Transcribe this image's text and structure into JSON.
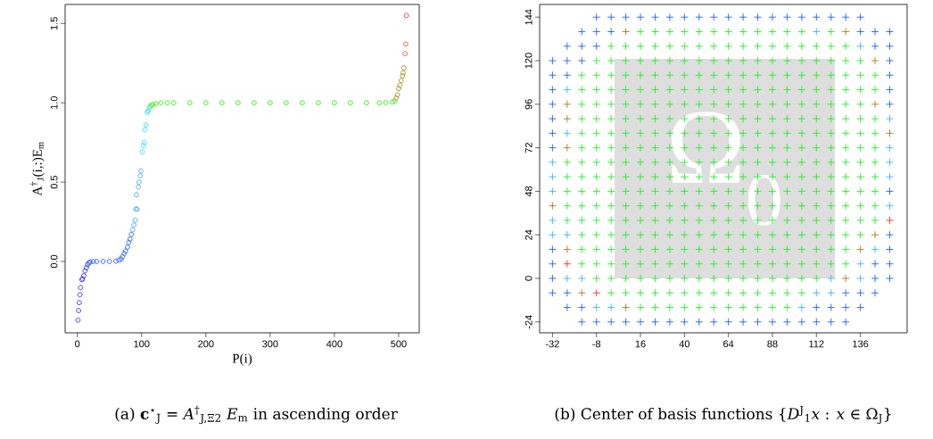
{
  "chart_data": [
    {
      "type": "scatter",
      "title": "(a) **c**$^{⋆}$$_{J}$ = *A*$^{†}$$_{J,Ξ2}$ *E*$_{m}$ in ascending order",
      "xlabel": "P(i)",
      "ylabel": "A$^{†}$$_{J}$(i,:)E$_{m}$",
      "marker": "circle",
      "xlim": [
        -19,
        532
      ],
      "ylim": [
        -0.45,
        1.62
      ],
      "xticks": [
        0,
        100,
        200,
        300,
        400,
        500
      ],
      "yticks": [
        {
          "value": 0,
          "label": "0.0"
        },
        {
          "value": 0.5,
          "label": "0.5"
        },
        {
          "value": 1,
          "label": "1.0"
        },
        {
          "value": 1.5,
          "label": "1.5"
        }
      ],
      "series": [
        {
          "color": "#2a2aff",
          "x": [
            1,
            2,
            3,
            4,
            5,
            7,
            8,
            10,
            12,
            14,
            16,
            18
          ],
          "values": [
            -0.37,
            -0.31,
            -0.26,
            -0.21,
            -0.165,
            -0.115,
            -0.11,
            -0.09,
            -0.06,
            -0.04,
            -0.02,
            -0.01
          ]
        },
        {
          "color": "#1e5aff",
          "x": [
            20,
            25,
            30,
            40,
            50,
            60,
            65,
            68,
            70,
            73,
            75,
            78,
            80,
            82,
            84
          ],
          "values": [
            -0.003,
            0,
            0,
            0,
            0,
            0.002,
            0.008,
            0.015,
            0.03,
            0.05,
            0.065,
            0.09,
            0.12,
            0.14,
            0.17
          ]
        },
        {
          "color": "#3ca6ff",
          "x": [
            86,
            88,
            90,
            91,
            93,
            92,
            95,
            96,
            98,
            99
          ],
          "values": [
            0.2,
            0.23,
            0.26,
            0.33,
            0.33,
            0.42,
            0.47,
            0.5,
            0.54,
            0.57
          ]
        },
        {
          "color": "#22ddff",
          "x": [
            101,
            103,
            104,
            105,
            107,
            109,
            110,
            112
          ],
          "values": [
            0.69,
            0.73,
            0.75,
            0.83,
            0.86,
            0.94,
            0.95,
            0.97
          ]
        },
        {
          "color": "#22ee00",
          "x": [
            114,
            117,
            122,
            130,
            140,
            150,
            175,
            200,
            225,
            250,
            275,
            300,
            325,
            350,
            375,
            400,
            425,
            450,
            470,
            480,
            490,
            494
          ],
          "values": [
            0.98,
            0.99,
            0.995,
            1,
            1,
            1,
            1,
            1,
            1,
            1,
            1,
            1,
            1,
            1,
            1,
            1,
            1,
            1,
            1,
            1.002,
            1.005,
            1.01
          ]
        },
        {
          "color": "#a08a10",
          "x": [
            496,
            498,
            500,
            502,
            504,
            506,
            507,
            508
          ],
          "values": [
            1.03,
            1.05,
            1.09,
            1.11,
            1.14,
            1.17,
            1.19,
            1.22
          ]
        },
        {
          "color": "#d85020",
          "x": [
            510,
            511
          ],
          "values": [
            1.31,
            1.37
          ]
        },
        {
          "color": "#ff2020",
          "x": [
            512
          ],
          "values": [
            1.55
          ]
        }
      ]
    },
    {
      "type": "scatter",
      "title": "(b) Center of basis functions {*D*$^{J}$$_{1}$*x* : *x* ∈ Ω$_{J}$}",
      "marker": "cross",
      "annotations": [
        "Ω$_{0}$"
      ],
      "xlim": [
        -39,
        161.5
      ],
      "ylim": [
        -30,
        151
      ],
      "xticks": [
        -32,
        -8,
        16,
        40,
        64,
        88,
        112,
        136
      ],
      "yticks": [
        -24,
        0,
        24,
        48,
        72,
        96,
        120,
        144
      ],
      "series": [
        {
          "color": "#1f5fff",
          "x": [
            -8,
            0,
            8,
            16,
            24,
            32,
            40,
            48,
            56,
            64,
            72,
            80,
            88,
            96,
            104,
            112,
            120,
            128,
            136,
            -16,
            -8,
            0,
            136,
            144,
            152,
            -24,
            -16,
            -8,
            144,
            152,
            -32,
            -24,
            -16,
            152,
            -32,
            -24,
            152,
            -32,
            152,
            -32,
            152,
            -32,
            -32,
            -32,
            152,
            152,
            -32,
            152,
            -32,
            144,
            152,
            -32,
            144,
            152,
            -32,
            -24,
            128,
            136,
            144,
            -24,
            -16,
            112,
            120,
            128,
            136,
            -16,
            -8,
            0,
            8,
            16,
            24,
            32,
            40,
            48,
            56,
            64,
            72,
            80,
            88,
            96,
            104,
            112,
            120,
            128
          ],
          "values": [
            144,
            144,
            144,
            144,
            144,
            144,
            144,
            144,
            144,
            144,
            144,
            144,
            144,
            144,
            144,
            144,
            144,
            144,
            144,
            136,
            136,
            136,
            136,
            136,
            136,
            128,
            128,
            128,
            128,
            128,
            120,
            120,
            120,
            120,
            112,
            112,
            112,
            104,
            104,
            96,
            96,
            88,
            80,
            72,
            48,
            24,
            16,
            16,
            8,
            8,
            8,
            0,
            0,
            0,
            -8,
            -8,
            -8,
            -8,
            -8,
            -16,
            -16,
            -16,
            -16,
            -16,
            -16,
            -24,
            -24,
            -24,
            -24,
            -24,
            -24,
            -24,
            -24,
            -24,
            -24,
            -24,
            -24,
            -24,
            -24,
            -24,
            -24,
            -24,
            -24,
            -24
          ]
        },
        {
          "color": "#38b4ff",
          "x": [
            112,
            136,
            -24,
            152,
            -24,
            152,
            -32,
            152,
            -32,
            152,
            -32,
            152,
            -32,
            -32,
            -24,
            144,
            136,
            -24,
            -16,
            120,
            136,
            112,
            120,
            -8,
            0,
            104
          ],
          "values": [
            136,
            128,
            104,
            88,
            80,
            72,
            64,
            64,
            56,
            56,
            48,
            40,
            32,
            24,
            24,
            16,
            8,
            0,
            0,
            0,
            0,
            -8,
            -8,
            -16,
            -16,
            -16
          ]
        },
        {
          "color": "#b07818",
          "x": [
            8,
            128,
            144,
            -24,
            144,
            -24,
            152,
            -24,
            -32,
            144,
            -24,
            136,
            128,
            -16,
            8
          ],
          "values": [
            136,
            136,
            120,
            96,
            96,
            88,
            80,
            72,
            40,
            24,
            16,
            16,
            0,
            -8,
            -16
          ]
        },
        {
          "color": "#ee3322",
          "x": [
            152,
            -24,
            -8
          ],
          "values": [
            32,
            8,
            -8
          ]
        },
        {
          "color": "#22ee22",
          "x": [
            16,
            24,
            32,
            40,
            48,
            56,
            64,
            72,
            80,
            88,
            96,
            104,
            120
          ],
          "values": [
            136,
            136,
            136,
            136,
            136,
            136,
            136,
            136,
            136,
            136,
            136,
            136,
            136
          ]
        },
        {
          "color": "#22ee22",
          "x": [
            0,
            8,
            16,
            24,
            32,
            40,
            48,
            56,
            64,
            72,
            80,
            88,
            96,
            104,
            112,
            120,
            128
          ],
          "values": [
            128,
            128,
            128,
            128,
            128,
            128,
            128,
            128,
            128,
            128,
            128,
            128,
            128,
            128,
            128,
            128,
            128
          ]
        },
        {
          "color": "#22ee22",
          "x": [
            -8,
            0,
            8,
            16,
            24,
            32,
            40,
            48,
            56,
            64,
            72,
            80,
            88,
            96,
            104,
            112,
            120,
            128,
            136
          ],
          "values": [
            120,
            120,
            120,
            120,
            120,
            120,
            120,
            120,
            120,
            120,
            120,
            120,
            120,
            120,
            120,
            120,
            120,
            120,
            120
          ]
        },
        {
          "color": "#22ee22",
          "x": [
            -16,
            -8,
            0,
            8,
            16,
            24,
            32,
            40,
            48,
            56,
            64,
            72,
            80,
            88,
            96,
            104,
            112,
            120,
            128,
            136,
            144
          ],
          "values": [
            112,
            112,
            112,
            112,
            112,
            112,
            112,
            112,
            112,
            112,
            112,
            112,
            112,
            112,
            112,
            112,
            112,
            112,
            112,
            112,
            112
          ]
        },
        {
          "color": "#22ee22",
          "x": [
            -16,
            -8,
            0,
            8,
            16,
            24,
            32,
            40,
            48,
            56,
            64,
            72,
            80,
            88,
            96,
            104,
            112,
            120,
            128,
            136,
            144
          ],
          "values": [
            104,
            104,
            104,
            104,
            104,
            104,
            104,
            104,
            104,
            104,
            104,
            104,
            104,
            104,
            104,
            104,
            104,
            104,
            104,
            104,
            104
          ]
        },
        {
          "color": "#22ee22",
          "x": [
            -16,
            -8,
            0,
            8,
            16,
            24,
            32,
            40,
            48,
            56,
            64,
            72,
            80,
            88,
            96,
            104,
            112,
            120,
            128,
            136
          ],
          "values": [
            96,
            96,
            96,
            96,
            96,
            96,
            96,
            96,
            96,
            96,
            96,
            96,
            96,
            96,
            96,
            96,
            96,
            96,
            96,
            96
          ]
        },
        {
          "color": "#22ee22",
          "x": [
            -16,
            -8,
            0,
            8,
            16,
            24,
            32,
            40,
            48,
            56,
            64,
            72,
            80,
            88,
            96,
            104,
            112,
            120,
            128,
            136,
            144
          ],
          "values": [
            88,
            88,
            88,
            88,
            88,
            88,
            88,
            88,
            88,
            88,
            88,
            88,
            88,
            88,
            88,
            88,
            88,
            88,
            88,
            88,
            88
          ]
        },
        {
          "color": "#22ee22",
          "x": [
            -16,
            -8,
            0,
            8,
            16,
            24,
            32,
            40,
            48,
            56,
            64,
            72,
            80,
            88,
            96,
            104,
            112,
            120,
            128,
            136,
            144
          ],
          "values": [
            80,
            80,
            80,
            80,
            80,
            80,
            80,
            80,
            80,
            80,
            80,
            80,
            80,
            80,
            80,
            80,
            80,
            80,
            80,
            80,
            80
          ]
        },
        {
          "color": "#22ee22",
          "x": [
            -16,
            -8,
            0,
            8,
            16,
            24,
            32,
            40,
            48,
            56,
            64,
            72,
            80,
            88,
            96,
            104,
            112,
            120,
            128,
            136,
            144
          ],
          "values": [
            72,
            72,
            72,
            72,
            72,
            72,
            72,
            72,
            72,
            72,
            72,
            72,
            72,
            72,
            72,
            72,
            72,
            72,
            72,
            72,
            72
          ]
        },
        {
          "color": "#22ee22",
          "x": [
            -24,
            -16,
            -8,
            0,
            8,
            16,
            24,
            32,
            40,
            48,
            56,
            64,
            72,
            80,
            88,
            96,
            104,
            112,
            120,
            128,
            136,
            144
          ],
          "values": [
            64,
            64,
            64,
            64,
            64,
            64,
            64,
            64,
            64,
            64,
            64,
            64,
            64,
            64,
            64,
            64,
            64,
            64,
            64,
            64,
            64,
            64
          ]
        },
        {
          "color": "#22ee22",
          "x": [
            -24,
            -16,
            -8,
            0,
            8,
            16,
            24,
            32,
            40,
            48,
            56,
            64,
            72,
            80,
            88,
            96,
            104,
            112,
            120,
            128,
            136,
            144
          ],
          "values": [
            56,
            56,
            56,
            56,
            56,
            56,
            56,
            56,
            56,
            56,
            56,
            56,
            56,
            56,
            56,
            56,
            56,
            56,
            56,
            56,
            56,
            56
          ]
        },
        {
          "color": "#22ee22",
          "x": [
            -24,
            -16,
            -8,
            0,
            8,
            16,
            24,
            32,
            40,
            48,
            56,
            64,
            72,
            80,
            88,
            96,
            104,
            112,
            120,
            128,
            136,
            144
          ],
          "values": [
            48,
            48,
            48,
            48,
            48,
            48,
            48,
            48,
            48,
            48,
            48,
            48,
            48,
            48,
            48,
            48,
            48,
            48,
            48,
            48,
            48,
            48
          ]
        },
        {
          "color": "#22ee22",
          "x": [
            -24,
            -16,
            -8,
            0,
            8,
            16,
            24,
            32,
            40,
            48,
            56,
            64,
            72,
            80,
            88,
            96,
            104,
            112,
            120,
            128,
            136,
            144
          ],
          "values": [
            40,
            40,
            40,
            40,
            40,
            40,
            40,
            40,
            40,
            40,
            40,
            40,
            40,
            40,
            40,
            40,
            40,
            40,
            40,
            40,
            40,
            40
          ]
        },
        {
          "color": "#22ee22",
          "x": [
            -24,
            -16,
            -8,
            0,
            8,
            16,
            24,
            32,
            40,
            48,
            56,
            64,
            72,
            80,
            88,
            96,
            104,
            112,
            120,
            128,
            136,
            144
          ],
          "values": [
            32,
            32,
            32,
            32,
            32,
            32,
            32,
            32,
            32,
            32,
            32,
            32,
            32,
            32,
            32,
            32,
            32,
            32,
            32,
            32,
            32,
            32
          ]
        },
        {
          "color": "#22ee22",
          "x": [
            -16,
            -8,
            0,
            8,
            16,
            24,
            32,
            40,
            48,
            56,
            64,
            72,
            80,
            88,
            96,
            104,
            112,
            120,
            128,
            136
          ],
          "values": [
            24,
            24,
            24,
            24,
            24,
            24,
            24,
            24,
            24,
            24,
            24,
            24,
            24,
            24,
            24,
            24,
            24,
            24,
            24,
            24
          ]
        },
        {
          "color": "#22ee22",
          "x": [
            -16,
            -8,
            0,
            8,
            16,
            24,
            32,
            40,
            48,
            56,
            64,
            72,
            80,
            88,
            96,
            104,
            112,
            120,
            128
          ],
          "values": [
            16,
            16,
            16,
            16,
            16,
            16,
            16,
            16,
            16,
            16,
            16,
            16,
            16,
            16,
            16,
            16,
            16,
            16,
            16
          ]
        },
        {
          "color": "#22ee22",
          "x": [
            -16,
            -8,
            0,
            8,
            16,
            24,
            32,
            40,
            48,
            56,
            64,
            72,
            80,
            88,
            96,
            104,
            112,
            120,
            128
          ],
          "values": [
            8,
            8,
            8,
            8,
            8,
            8,
            8,
            8,
            8,
            8,
            8,
            8,
            8,
            8,
            8,
            8,
            8,
            8,
            8
          ]
        },
        {
          "color": "#22ee22",
          "x": [
            -8,
            0,
            8,
            16,
            24,
            32,
            40,
            48,
            56,
            64,
            72,
            80,
            88,
            96,
            104,
            112
          ],
          "values": [
            0,
            0,
            0,
            0,
            0,
            0,
            0,
            0,
            0,
            0,
            0,
            0,
            0,
            0,
            0,
            0
          ]
        },
        {
          "color": "#22ee22",
          "x": [
            0,
            8,
            16,
            24,
            32,
            40,
            48,
            56,
            64,
            72,
            80,
            88,
            96,
            104
          ],
          "values": [
            -8,
            -8,
            -8,
            -8,
            -8,
            -8,
            -8,
            -8,
            -8,
            -8,
            -8,
            -8,
            -8,
            -8
          ]
        },
        {
          "color": "#22ee22",
          "x": [
            16,
            24,
            32,
            40,
            48,
            56,
            64,
            72,
            80,
            88,
            96
          ],
          "values": [
            -16,
            -16,
            -16,
            -16,
            -16,
            -16,
            -16,
            -16,
            -16,
            -16,
            -16
          ]
        }
      ]
    }
  ]
}
